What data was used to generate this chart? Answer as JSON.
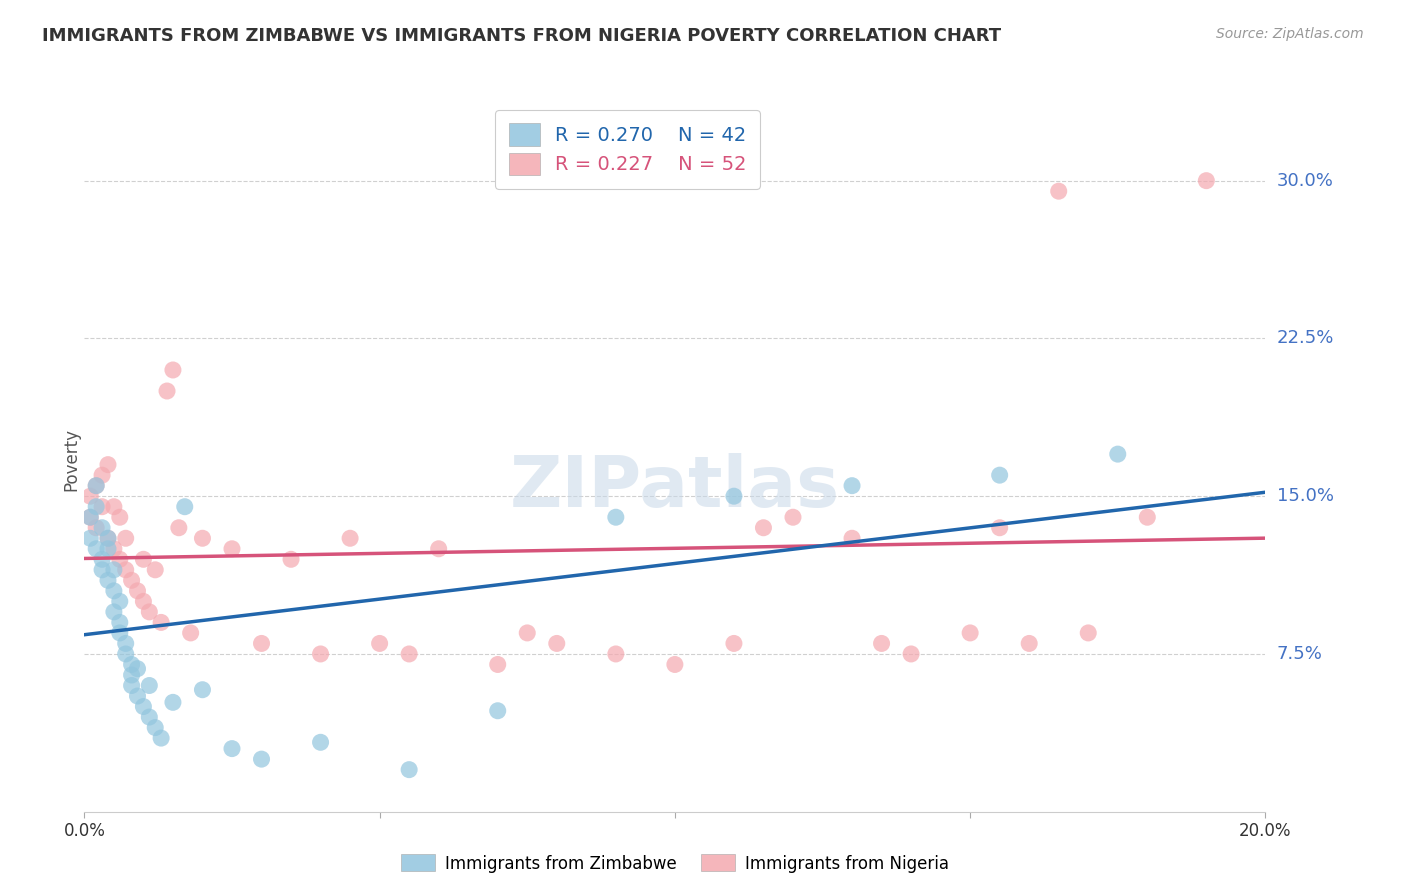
{
  "title": "IMMIGRANTS FROM ZIMBABWE VS IMMIGRANTS FROM NIGERIA POVERTY CORRELATION CHART",
  "source": "Source: ZipAtlas.com",
  "ylabel": "Poverty",
  "yticks": [
    0.075,
    0.15,
    0.225,
    0.3
  ],
  "ytick_labels": [
    "7.5%",
    "15.0%",
    "22.5%",
    "30.0%"
  ],
  "xlim": [
    0.0,
    0.2
  ],
  "ylim": [
    0.0,
    0.335
  ],
  "zimbabwe_color": "#92c5de",
  "nigeria_color": "#f4a9b0",
  "zimbabwe_line_color": "#2166ac",
  "nigeria_line_color": "#d6537a",
  "R_zimbabwe": 0.27,
  "N_zimbabwe": 42,
  "R_nigeria": 0.227,
  "N_nigeria": 52,
  "background_color": "#ffffff",
  "grid_color": "#d0d0d0",
  "watermark": "ZIPatlas",
  "zimbabwe_x": [
    0.001,
    0.001,
    0.002,
    0.002,
    0.002,
    0.003,
    0.003,
    0.003,
    0.004,
    0.004,
    0.004,
    0.005,
    0.005,
    0.005,
    0.006,
    0.006,
    0.006,
    0.007,
    0.007,
    0.008,
    0.008,
    0.008,
    0.009,
    0.009,
    0.01,
    0.011,
    0.011,
    0.012,
    0.013,
    0.015,
    0.017,
    0.02,
    0.025,
    0.03,
    0.04,
    0.055,
    0.07,
    0.09,
    0.11,
    0.13,
    0.155,
    0.175
  ],
  "zimbabwe_y": [
    0.13,
    0.14,
    0.125,
    0.145,
    0.155,
    0.12,
    0.115,
    0.135,
    0.11,
    0.125,
    0.13,
    0.095,
    0.105,
    0.115,
    0.1,
    0.09,
    0.085,
    0.075,
    0.08,
    0.07,
    0.06,
    0.065,
    0.055,
    0.068,
    0.05,
    0.045,
    0.06,
    0.04,
    0.035,
    0.052,
    0.145,
    0.058,
    0.03,
    0.025,
    0.033,
    0.02,
    0.048,
    0.14,
    0.15,
    0.155,
    0.16,
    0.17
  ],
  "nigeria_x": [
    0.001,
    0.001,
    0.002,
    0.002,
    0.003,
    0.003,
    0.004,
    0.004,
    0.005,
    0.005,
    0.006,
    0.006,
    0.007,
    0.007,
    0.008,
    0.009,
    0.01,
    0.01,
    0.011,
    0.012,
    0.013,
    0.014,
    0.015,
    0.016,
    0.018,
    0.02,
    0.025,
    0.03,
    0.035,
    0.04,
    0.045,
    0.05,
    0.055,
    0.06,
    0.07,
    0.075,
    0.08,
    0.09,
    0.1,
    0.11,
    0.115,
    0.12,
    0.13,
    0.135,
    0.14,
    0.15,
    0.155,
    0.16,
    0.165,
    0.17,
    0.18,
    0.19
  ],
  "nigeria_y": [
    0.15,
    0.14,
    0.155,
    0.135,
    0.145,
    0.16,
    0.13,
    0.165,
    0.125,
    0.145,
    0.12,
    0.14,
    0.115,
    0.13,
    0.11,
    0.105,
    0.1,
    0.12,
    0.095,
    0.115,
    0.09,
    0.2,
    0.21,
    0.135,
    0.085,
    0.13,
    0.125,
    0.08,
    0.12,
    0.075,
    0.13,
    0.08,
    0.075,
    0.125,
    0.07,
    0.085,
    0.08,
    0.075,
    0.07,
    0.08,
    0.135,
    0.14,
    0.13,
    0.08,
    0.075,
    0.085,
    0.135,
    0.08,
    0.295,
    0.085,
    0.14,
    0.3
  ]
}
